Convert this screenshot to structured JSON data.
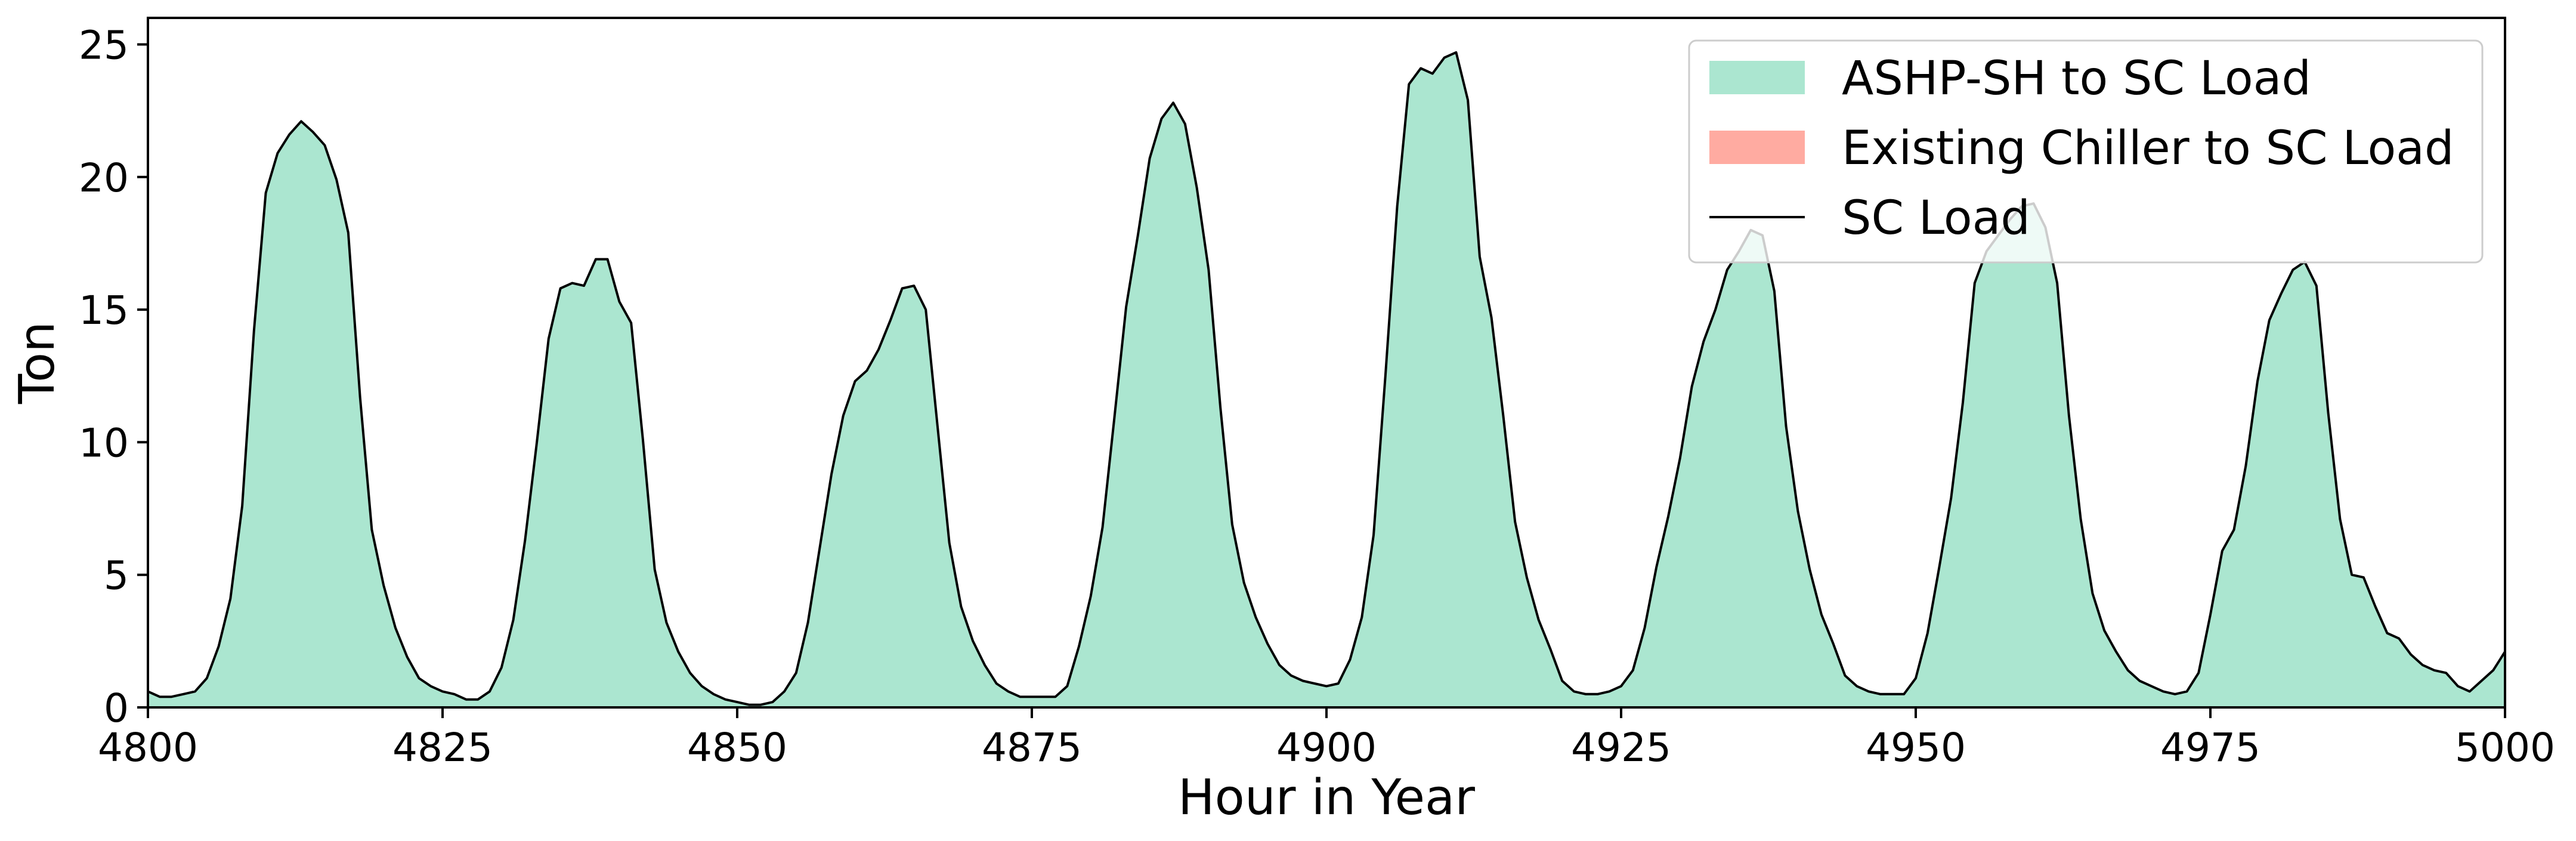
{
  "chart_data": {
    "type": "area",
    "xlabel": "Hour in Year",
    "ylabel": "Ton",
    "xlim": [
      4800,
      5000
    ],
    "ylim": [
      0,
      26
    ],
    "x_ticks": [
      4800,
      4825,
      4850,
      4875,
      4900,
      4925,
      4950,
      4975,
      5000
    ],
    "y_ticks": [
      0,
      5,
      10,
      15,
      20,
      25
    ],
    "grid": false,
    "legend_position": "top-right",
    "x_start": 4800,
    "x_step": 1,
    "series": [
      {
        "name": "ASHP-SH to SC Load",
        "kind": "area",
        "color": "#abe6d0",
        "values": [
          0.6,
          0.4,
          0.4,
          0.5,
          0.6,
          1.1,
          2.3,
          4.1,
          7.6,
          14.2,
          19.4,
          20.9,
          21.6,
          22.1,
          21.7,
          21.2,
          19.9,
          17.9,
          11.7,
          6.7,
          4.6,
          3.0,
          1.9,
          1.1,
          0.8,
          0.6,
          0.5,
          0.3,
          0.3,
          0.6,
          1.5,
          3.3,
          6.3,
          10.0,
          13.9,
          15.8,
          16.0,
          15.9,
          16.9,
          16.9,
          15.3,
          14.5,
          10.1,
          5.2,
          3.2,
          2.1,
          1.3,
          0.8,
          0.5,
          0.3,
          0.2,
          0.1,
          0.1,
          0.2,
          0.6,
          1.3,
          3.2,
          6.0,
          8.8,
          11.0,
          12.3,
          12.7,
          13.5,
          14.6,
          15.8,
          15.9,
          15.0,
          10.6,
          6.2,
          3.8,
          2.5,
          1.6,
          0.9,
          0.6,
          0.4,
          0.4,
          0.4,
          0.4,
          0.8,
          2.3,
          4.2,
          6.8,
          10.9,
          15.1,
          17.8,
          20.7,
          22.2,
          22.8,
          22.0,
          19.6,
          16.5,
          11.3,
          6.9,
          4.7,
          3.4,
          2.4,
          1.6,
          1.2,
          1.0,
          0.9,
          0.8,
          0.9,
          1.8,
          3.4,
          6.5,
          12.5,
          18.9,
          23.5,
          24.1,
          23.9,
          24.5,
          24.7,
          22.9,
          17.0,
          14.7,
          11.0,
          7.0,
          4.9,
          3.3,
          2.2,
          1.0,
          0.6,
          0.5,
          0.5,
          0.6,
          0.8,
          1.4,
          3.0,
          5.3,
          7.2,
          9.4,
          12.1,
          13.8,
          15.0,
          16.5,
          17.2,
          18.0,
          17.8,
          15.7,
          10.6,
          7.4,
          5.2,
          3.5,
          2.4,
          1.2,
          0.8,
          0.6,
          0.5,
          0.5,
          0.5,
          1.1,
          2.8,
          5.3,
          7.9,
          11.5,
          16.0,
          17.2,
          17.8,
          18.4,
          18.9,
          19.0,
          18.1,
          16.0,
          11.0,
          7.1,
          4.3,
          2.9,
          2.1,
          1.4,
          1.0,
          0.8,
          0.6,
          0.5,
          0.6,
          1.3,
          3.5,
          5.9,
          6.7,
          9.1,
          12.3,
          14.6,
          15.6,
          16.5,
          16.8,
          15.9,
          11.1,
          7.1,
          5.0,
          4.9,
          3.8,
          2.8,
          2.6,
          2.0,
          1.6,
          1.4,
          1.3,
          0.8,
          0.6,
          1.0,
          1.4,
          2.1
        ]
      },
      {
        "name": "Existing Chiller to SC Load",
        "kind": "area",
        "color": "#ffaba1",
        "values": []
      },
      {
        "name": "SC Load",
        "kind": "line",
        "color": "#000000",
        "values": [
          0.6,
          0.4,
          0.4,
          0.5,
          0.6,
          1.1,
          2.3,
          4.1,
          7.6,
          14.2,
          19.4,
          20.9,
          21.6,
          22.1,
          21.7,
          21.2,
          19.9,
          17.9,
          11.7,
          6.7,
          4.6,
          3.0,
          1.9,
          1.1,
          0.8,
          0.6,
          0.5,
          0.3,
          0.3,
          0.6,
          1.5,
          3.3,
          6.3,
          10.0,
          13.9,
          15.8,
          16.0,
          15.9,
          16.9,
          16.9,
          15.3,
          14.5,
          10.1,
          5.2,
          3.2,
          2.1,
          1.3,
          0.8,
          0.5,
          0.3,
          0.2,
          0.1,
          0.1,
          0.2,
          0.6,
          1.3,
          3.2,
          6.0,
          8.8,
          11.0,
          12.3,
          12.7,
          13.5,
          14.6,
          15.8,
          15.9,
          15.0,
          10.6,
          6.2,
          3.8,
          2.5,
          1.6,
          0.9,
          0.6,
          0.4,
          0.4,
          0.4,
          0.4,
          0.8,
          2.3,
          4.2,
          6.8,
          10.9,
          15.1,
          17.8,
          20.7,
          22.2,
          22.8,
          22.0,
          19.6,
          16.5,
          11.3,
          6.9,
          4.7,
          3.4,
          2.4,
          1.6,
          1.2,
          1.0,
          0.9,
          0.8,
          0.9,
          1.8,
          3.4,
          6.5,
          12.5,
          18.9,
          23.5,
          24.1,
          23.9,
          24.5,
          24.7,
          22.9,
          17.0,
          14.7,
          11.0,
          7.0,
          4.9,
          3.3,
          2.2,
          1.0,
          0.6,
          0.5,
          0.5,
          0.6,
          0.8,
          1.4,
          3.0,
          5.3,
          7.2,
          9.4,
          12.1,
          13.8,
          15.0,
          16.5,
          17.2,
          18.0,
          17.8,
          15.7,
          10.6,
          7.4,
          5.2,
          3.5,
          2.4,
          1.2,
          0.8,
          0.6,
          0.5,
          0.5,
          0.5,
          1.1,
          2.8,
          5.3,
          7.9,
          11.5,
          16.0,
          17.2,
          17.8,
          18.4,
          18.9,
          19.0,
          18.1,
          16.0,
          11.0,
          7.1,
          4.3,
          2.9,
          2.1,
          1.4,
          1.0,
          0.8,
          0.6,
          0.5,
          0.6,
          1.3,
          3.5,
          5.9,
          6.7,
          9.1,
          12.3,
          14.6,
          15.6,
          16.5,
          16.8,
          15.9,
          11.1,
          7.1,
          5.0,
          4.9,
          3.8,
          2.8,
          2.6,
          2.0,
          1.6,
          1.4,
          1.3,
          0.8,
          0.6,
          1.0,
          1.4,
          2.1
        ]
      }
    ]
  }
}
